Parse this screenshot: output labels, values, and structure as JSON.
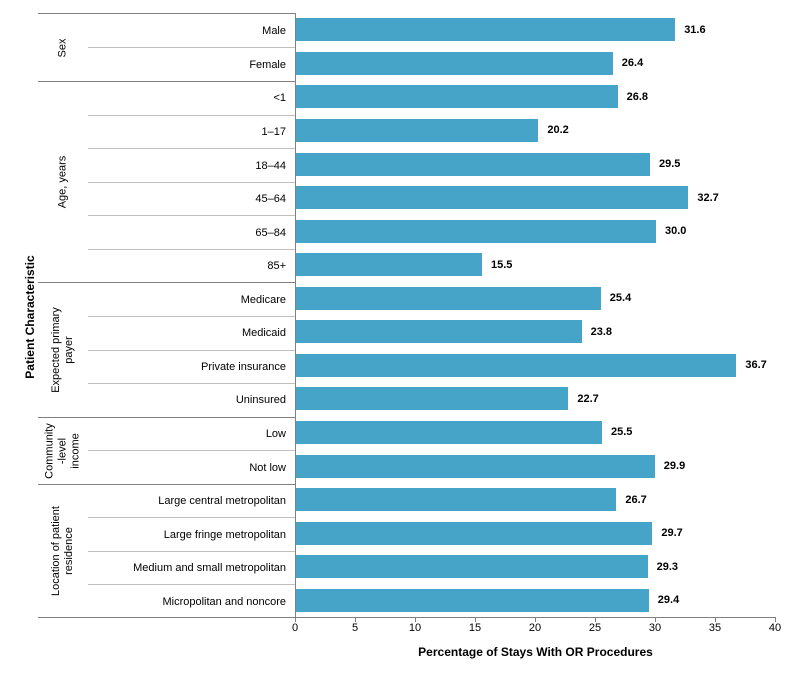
{
  "chart_data": {
    "type": "bar",
    "orientation": "horizontal",
    "xlabel": "Percentage of Stays With OR Procedures",
    "ylabel": "Patient Characteristic",
    "xlim": [
      0,
      40
    ],
    "xticks": [
      0,
      5,
      10,
      15,
      20,
      25,
      30,
      35,
      40
    ],
    "grid": false,
    "legend": "none",
    "bar_color": "#45a4c8",
    "major_line_color": "#808080",
    "minor_line_color": "#bfbfbf",
    "groups": [
      {
        "label_lines": [
          "Sex"
        ],
        "categories": [
          "Male",
          "Female"
        ],
        "values": [
          31.6,
          26.4
        ],
        "value_labels": [
          "31.6",
          "26.4"
        ]
      },
      {
        "label_lines": [
          "Age, years"
        ],
        "categories": [
          "<1",
          "1–17",
          "18–44",
          "45–64",
          "65–84",
          "85+"
        ],
        "values": [
          26.8,
          20.2,
          29.5,
          32.7,
          30.0,
          15.5
        ],
        "value_labels": [
          "26.8",
          "20.2",
          "29.5",
          "32.7",
          "30.0",
          "15.5"
        ]
      },
      {
        "label_lines": [
          "Expected primary",
          "payer"
        ],
        "categories": [
          "Medicare",
          "Medicaid",
          "Private insurance",
          "Uninsured"
        ],
        "values": [
          25.4,
          23.8,
          36.7,
          22.7
        ],
        "value_labels": [
          "25.4",
          "23.8",
          "36.7",
          "22.7"
        ]
      },
      {
        "label_lines": [
          "Community",
          "-level",
          "income"
        ],
        "categories": [
          "Low",
          "Not low"
        ],
        "values": [
          25.5,
          29.9
        ],
        "value_labels": [
          "25.5",
          "29.9"
        ]
      },
      {
        "label_lines": [
          "Location of patient",
          "residence"
        ],
        "categories": [
          "Large central metropolitan",
          "Large fringe metropolitan",
          "Medium and small metropolitan",
          "Micropolitan and noncore"
        ],
        "values": [
          26.7,
          29.7,
          29.3,
          29.4
        ],
        "value_labels": [
          "26.7",
          "29.7",
          "29.3",
          "29.4"
        ]
      }
    ]
  }
}
